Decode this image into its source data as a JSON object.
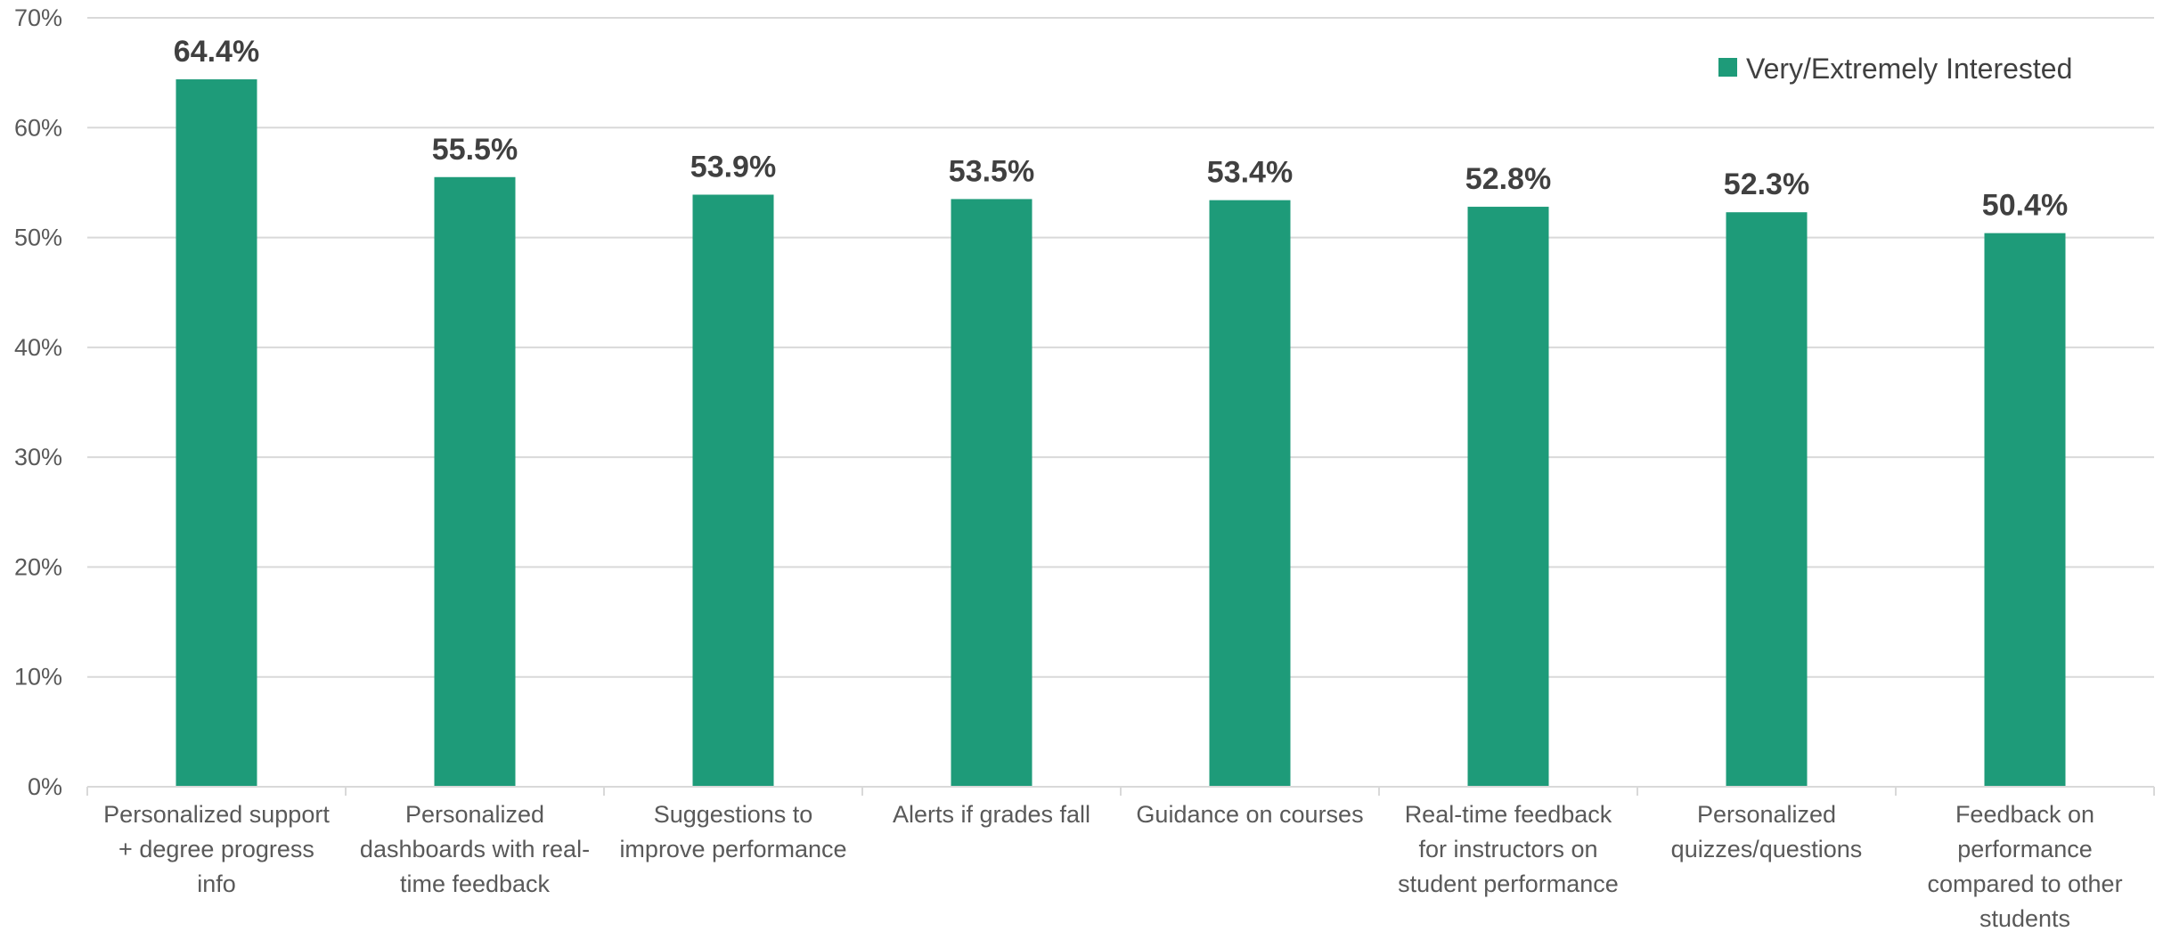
{
  "chart_data": {
    "type": "bar",
    "categories": [
      "Personalized support + degree progress info",
      "Personalized dashboards with real-time feedback",
      "Suggestions to improve performance",
      "Alerts if grades fall",
      "Guidance on courses",
      "Real-time feedback for instructors on student performance",
      "Personalized quizzes/questions",
      "Feedback on performance compared to other students"
    ],
    "category_lines": [
      [
        "Personalized support",
        "+ degree progress",
        "info"
      ],
      [
        "Personalized",
        "dashboards with real-",
        "time feedback"
      ],
      [
        "Suggestions to",
        "improve performance"
      ],
      [
        "Alerts if grades fall"
      ],
      [
        "Guidance on courses"
      ],
      [
        "Real-time feedback",
        "for instructors on",
        "student performance"
      ],
      [
        "Personalized",
        "quizzes/questions"
      ],
      [
        "Feedback on",
        "performance",
        "compared to other",
        "students"
      ]
    ],
    "series": [
      {
        "name": "Very/Extremely Interested",
        "values": [
          64.4,
          55.5,
          53.9,
          53.5,
          53.4,
          52.8,
          52.3,
          50.4
        ],
        "labels": [
          "64.4%",
          "55.5%",
          "53.9%",
          "53.5%",
          "53.4%",
          "52.8%",
          "52.3%",
          "50.4%"
        ],
        "color": "#1e9b79"
      }
    ],
    "yticks": [
      "0%",
      "10%",
      "20%",
      "30%",
      "40%",
      "50%",
      "60%",
      "70%"
    ],
    "ylim": [
      0,
      70
    ],
    "title": "",
    "xlabel": "",
    "ylabel": "",
    "grid": true,
    "legend_position": "top-right"
  }
}
